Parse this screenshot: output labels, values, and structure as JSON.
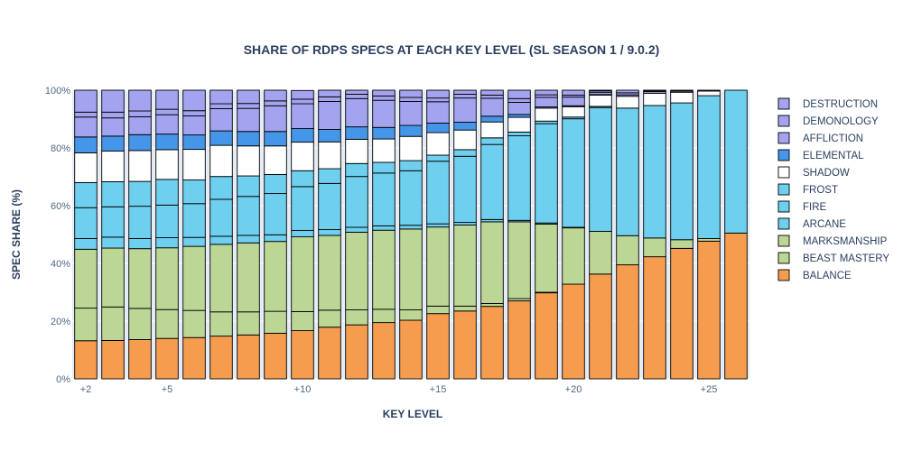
{
  "chart_data": {
    "type": "bar",
    "stacked": true,
    "title": "SHARE OF RDPS SPECS AT EACH KEY LEVEL (SL SEASON 1 / 9.0.2)",
    "xlabel": "KEY LEVEL",
    "ylabel": "SPEC SHARE (%)",
    "ylim": [
      0,
      100
    ],
    "y_ticks": [
      "0%",
      "20%",
      "40%",
      "60%",
      "80%",
      "100%"
    ],
    "y_tick_values": [
      0,
      20,
      40,
      60,
      80,
      100
    ],
    "x_ticks": [
      "+2",
      "+5",
      "+10",
      "+15",
      "+20",
      "+25"
    ],
    "x_tick_values": [
      2,
      5,
      10,
      15,
      20,
      25
    ],
    "legend_position": "right",
    "x": [
      2,
      3,
      4,
      5,
      6,
      7,
      8,
      9,
      10,
      11,
      12,
      13,
      14,
      15,
      16,
      17,
      18,
      19,
      20,
      21,
      22,
      23,
      24,
      25,
      26
    ],
    "series": [
      {
        "name": "BALANCE",
        "color": "#f59c4f",
        "values": [
          13.2,
          13.3,
          13.6,
          14.0,
          14.3,
          14.8,
          15.2,
          15.8,
          16.7,
          17.9,
          18.7,
          19.5,
          20.3,
          22.6,
          23.5,
          25.1,
          27.0,
          29.8,
          32.8,
          36.3,
          39.5,
          42.3,
          45.2,
          47.7,
          50.5
        ]
      },
      {
        "name": "BEAST MASTERY",
        "color": "#bcd696",
        "values": [
          11.3,
          11.6,
          10.8,
          10.0,
          9.4,
          8.4,
          8.0,
          7.6,
          6.6,
          5.9,
          5.2,
          4.6,
          3.6,
          2.6,
          1.7,
          1.0,
          0.8,
          0.2,
          0,
          0,
          0,
          0,
          0,
          0,
          0
        ]
      },
      {
        "name": "MARKSMANSHIP",
        "color": "#bcd696",
        "values": [
          20.4,
          20.4,
          20.7,
          21.4,
          22.2,
          23.4,
          23.9,
          24.2,
          25.9,
          25.9,
          26.9,
          27.4,
          28.0,
          27.4,
          28.1,
          28.3,
          26.6,
          23.6,
          19.5,
          14.8,
          10.1,
          6.5,
          3.0,
          0.9,
          0
        ]
      },
      {
        "name": "ARCANE",
        "color": "#6ecfee",
        "values": [
          3.7,
          3.8,
          3.5,
          3.5,
          3.1,
          2.8,
          2.6,
          2.3,
          2.2,
          2.0,
          1.7,
          1.5,
          1.3,
          1.1,
          0.9,
          0.8,
          0.5,
          0.4,
          0.2,
          0,
          0,
          0,
          0,
          0,
          0
        ]
      },
      {
        "name": "FIRE",
        "color": "#6ecfee",
        "values": [
          10.7,
          10.5,
          11.2,
          11.3,
          11.7,
          12.8,
          13.5,
          14.3,
          15.2,
          16.0,
          17.6,
          18.3,
          18.9,
          21.7,
          22.9,
          26.0,
          29.3,
          34.4,
          37.6,
          42.9,
          44.2,
          45.9,
          47.4,
          49.5,
          49.5
        ]
      },
      {
        "name": "FROST",
        "color": "#6ecfee",
        "values": [
          8.7,
          8.7,
          8.6,
          8.9,
          8.2,
          7.9,
          7.1,
          6.6,
          5.5,
          5.1,
          4.5,
          3.7,
          3.5,
          2.1,
          2.3,
          2.3,
          1.3,
          0.9,
          0.6,
          0.4,
          0,
          0,
          0,
          0,
          0
        ]
      },
      {
        "name": "SHADOW",
        "color": "#ffffff",
        "values": [
          10.3,
          10.6,
          10.7,
          10.3,
          10.6,
          10.8,
          10.4,
          9.9,
          9.9,
          9.3,
          8.4,
          8.1,
          8.4,
          7.8,
          6.8,
          5.5,
          5.1,
          4.5,
          3.6,
          3.9,
          4.1,
          4.2,
          3.7,
          1.6,
          0
        ]
      },
      {
        "name": "ELEMENTAL",
        "color": "#4596e8",
        "values": [
          5.5,
          5.2,
          5.5,
          5.4,
          5.0,
          5.0,
          5.0,
          5.0,
          4.7,
          4.3,
          4.3,
          4.0,
          3.8,
          3.3,
          2.7,
          2.0,
          1.0,
          0.4,
          0.3,
          0.2,
          0,
          0,
          0,
          0,
          0
        ]
      },
      {
        "name": "AFFLICTION",
        "color": "#a3a3ef",
        "values": [
          6.9,
          6.3,
          6.2,
          6.7,
          6.6,
          7.7,
          8.0,
          8.9,
          8.6,
          9.7,
          9.8,
          9.4,
          8.3,
          7.4,
          8.4,
          6.2,
          4.2,
          3.3,
          3.0,
          0.8,
          0.5,
          0.6,
          0.4,
          0.3,
          0
        ]
      },
      {
        "name": "DEMONOLOGY",
        "color": "#a3a3ef",
        "values": [
          1.7,
          2.0,
          2.0,
          1.9,
          1.8,
          1.7,
          1.7,
          1.7,
          1.6,
          1.6,
          1.5,
          1.5,
          1.4,
          1.3,
          1.3,
          1.1,
          1.3,
          0.9,
          0.7,
          0.5,
          0.7,
          0.3,
          0.3,
          0,
          0
        ]
      },
      {
        "name": "DESTRUCTION",
        "color": "#a3a3ef",
        "values": [
          7.6,
          7.6,
          7.2,
          6.6,
          7.1,
          4.7,
          4.6,
          3.7,
          3.0,
          2.3,
          1.4,
          2.0,
          2.5,
          2.7,
          1.4,
          1.7,
          2.9,
          1.6,
          1.7,
          0.2,
          0.9,
          0.2,
          0,
          0,
          0
        ]
      }
    ]
  }
}
